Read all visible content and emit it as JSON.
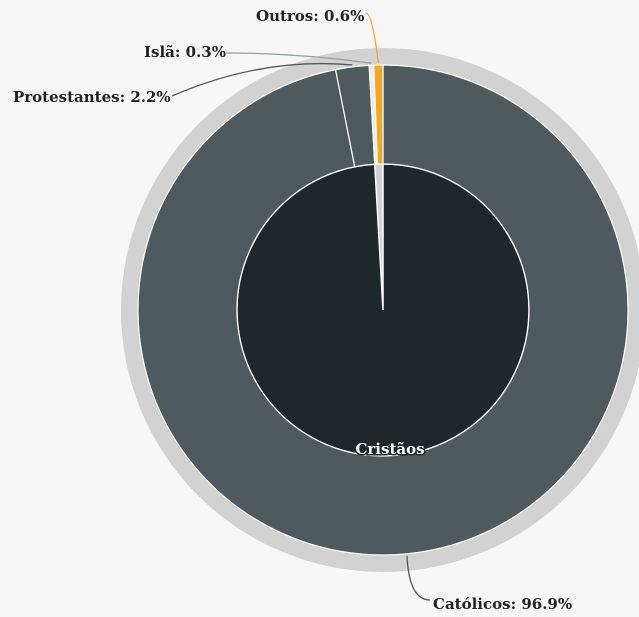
{
  "chart_data": {
    "type": "sunburst",
    "values": [
      96.9,
      2.2,
      0.3,
      0.6
    ],
    "value_labels": [
      "Católicos: 96.9%",
      "Protestantes: 2.2%",
      "Islã: 0.3%",
      "Outros: 0.6%"
    ],
    "colors": [
      "#4f5a60",
      "#4f5a60",
      "#e8ecee",
      "#f5a623"
    ],
    "parents": [
      "Cristãos",
      "Cristãos",
      null,
      null
    ],
    "parent_color": "#1e272c"
  }
}
